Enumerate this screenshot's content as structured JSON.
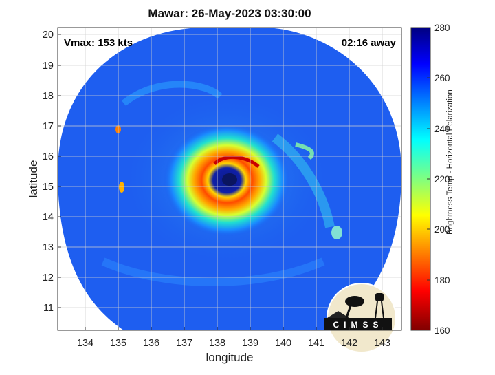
{
  "title": "Mawar: 26-May-2023 03:30:00",
  "vmax": "Vmax: 153 kts",
  "time_away": "02:16 away",
  "xlabel": "longitude",
  "ylabel": "latitude",
  "colorbar_label": "Brightness Temp - Horizontal Polarization",
  "x_ticks": [
    "134",
    "135",
    "136",
    "137",
    "138",
    "139",
    "140",
    "141",
    "142",
    "143"
  ],
  "y_ticks": [
    "20",
    "19",
    "18",
    "17",
    "16",
    "15",
    "14",
    "13",
    "12",
    "11"
  ],
  "colorbar_ticks": [
    "280",
    "260",
    "240",
    "220",
    "200",
    "180",
    "160"
  ],
  "logo_text": "CIMSS",
  "map_data": {
    "xlim": [
      133.25,
      143.6
    ],
    "ylim": [
      10.3,
      20.25
    ],
    "eye_center": [
      138.3,
      15.25
    ],
    "colorbar_range": [
      160,
      280
    ],
    "colormap": "jet",
    "grid": true
  }
}
